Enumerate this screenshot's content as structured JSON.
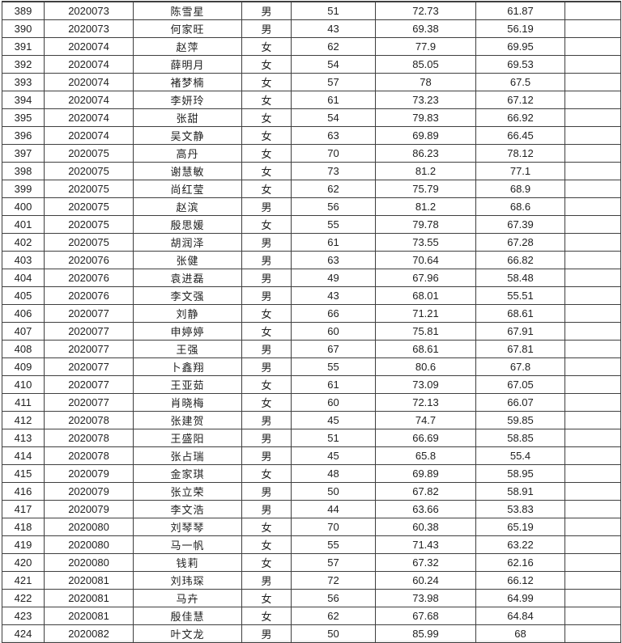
{
  "table": {
    "rows": [
      {
        "seq": "389",
        "id": "2020073",
        "name": "陈雪星",
        "gender": "男",
        "age": "51",
        "score1": "72.73",
        "score2": "61.87",
        "note": ""
      },
      {
        "seq": "390",
        "id": "2020073",
        "name": "何家旺",
        "gender": "男",
        "age": "43",
        "score1": "69.38",
        "score2": "56.19",
        "note": ""
      },
      {
        "seq": "391",
        "id": "2020074",
        "name": "赵萍",
        "gender": "女",
        "age": "62",
        "score1": "77.9",
        "score2": "69.95",
        "note": ""
      },
      {
        "seq": "392",
        "id": "2020074",
        "name": "薛明月",
        "gender": "女",
        "age": "54",
        "score1": "85.05",
        "score2": "69.53",
        "note": ""
      },
      {
        "seq": "393",
        "id": "2020074",
        "name": "褚梦楠",
        "gender": "女",
        "age": "57",
        "score1": "78",
        "score2": "67.5",
        "note": ""
      },
      {
        "seq": "394",
        "id": "2020074",
        "name": "李妍玲",
        "gender": "女",
        "age": "61",
        "score1": "73.23",
        "score2": "67.12",
        "note": ""
      },
      {
        "seq": "395",
        "id": "2020074",
        "name": "张甜",
        "gender": "女",
        "age": "54",
        "score1": "79.83",
        "score2": "66.92",
        "note": ""
      },
      {
        "seq": "396",
        "id": "2020074",
        "name": "吴文静",
        "gender": "女",
        "age": "63",
        "score1": "69.89",
        "score2": "66.45",
        "note": ""
      },
      {
        "seq": "397",
        "id": "2020075",
        "name": "高丹",
        "gender": "女",
        "age": "70",
        "score1": "86.23",
        "score2": "78.12",
        "note": ""
      },
      {
        "seq": "398",
        "id": "2020075",
        "name": "谢慧敏",
        "gender": "女",
        "age": "73",
        "score1": "81.2",
        "score2": "77.1",
        "note": ""
      },
      {
        "seq": "399",
        "id": "2020075",
        "name": "尚红莹",
        "gender": "女",
        "age": "62",
        "score1": "75.79",
        "score2": "68.9",
        "note": ""
      },
      {
        "seq": "400",
        "id": "2020075",
        "name": "赵滨",
        "gender": "男",
        "age": "56",
        "score1": "81.2",
        "score2": "68.6",
        "note": ""
      },
      {
        "seq": "401",
        "id": "2020075",
        "name": "殷思媛",
        "gender": "女",
        "age": "55",
        "score1": "79.78",
        "score2": "67.39",
        "note": ""
      },
      {
        "seq": "402",
        "id": "2020075",
        "name": "胡润泽",
        "gender": "男",
        "age": "61",
        "score1": "73.55",
        "score2": "67.28",
        "note": ""
      },
      {
        "seq": "403",
        "id": "2020076",
        "name": "张健",
        "gender": "男",
        "age": "63",
        "score1": "70.64",
        "score2": "66.82",
        "note": ""
      },
      {
        "seq": "404",
        "id": "2020076",
        "name": "袁进磊",
        "gender": "男",
        "age": "49",
        "score1": "67.96",
        "score2": "58.48",
        "note": ""
      },
      {
        "seq": "405",
        "id": "2020076",
        "name": "李文强",
        "gender": "男",
        "age": "43",
        "score1": "68.01",
        "score2": "55.51",
        "note": ""
      },
      {
        "seq": "406",
        "id": "2020077",
        "name": "刘静",
        "gender": "女",
        "age": "66",
        "score1": "71.21",
        "score2": "68.61",
        "note": ""
      },
      {
        "seq": "407",
        "id": "2020077",
        "name": "申婷婷",
        "gender": "女",
        "age": "60",
        "score1": "75.81",
        "score2": "67.91",
        "note": ""
      },
      {
        "seq": "408",
        "id": "2020077",
        "name": "王强",
        "gender": "男",
        "age": "67",
        "score1": "68.61",
        "score2": "67.81",
        "note": ""
      },
      {
        "seq": "409",
        "id": "2020077",
        "name": "卜鑫翔",
        "gender": "男",
        "age": "55",
        "score1": "80.6",
        "score2": "67.8",
        "note": ""
      },
      {
        "seq": "410",
        "id": "2020077",
        "name": "王亚茹",
        "gender": "女",
        "age": "61",
        "score1": "73.09",
        "score2": "67.05",
        "note": ""
      },
      {
        "seq": "411",
        "id": "2020077",
        "name": "肖晓梅",
        "gender": "女",
        "age": "60",
        "score1": "72.13",
        "score2": "66.07",
        "note": ""
      },
      {
        "seq": "412",
        "id": "2020078",
        "name": "张建贺",
        "gender": "男",
        "age": "45",
        "score1": "74.7",
        "score2": "59.85",
        "note": ""
      },
      {
        "seq": "413",
        "id": "2020078",
        "name": "王盛阳",
        "gender": "男",
        "age": "51",
        "score1": "66.69",
        "score2": "58.85",
        "note": ""
      },
      {
        "seq": "414",
        "id": "2020078",
        "name": "张占瑞",
        "gender": "男",
        "age": "45",
        "score1": "65.8",
        "score2": "55.4",
        "note": ""
      },
      {
        "seq": "415",
        "id": "2020079",
        "name": "金家琪",
        "gender": "女",
        "age": "48",
        "score1": "69.89",
        "score2": "58.95",
        "note": ""
      },
      {
        "seq": "416",
        "id": "2020079",
        "name": "张立荣",
        "gender": "男",
        "age": "50",
        "score1": "67.82",
        "score2": "58.91",
        "note": ""
      },
      {
        "seq": "417",
        "id": "2020079",
        "name": "李文浩",
        "gender": "男",
        "age": "44",
        "score1": "63.66",
        "score2": "53.83",
        "note": ""
      },
      {
        "seq": "418",
        "id": "2020080",
        "name": "刘琴琴",
        "gender": "女",
        "age": "70",
        "score1": "60.38",
        "score2": "65.19",
        "note": ""
      },
      {
        "seq": "419",
        "id": "2020080",
        "name": "马一帆",
        "gender": "女",
        "age": "55",
        "score1": "71.43",
        "score2": "63.22",
        "note": ""
      },
      {
        "seq": "420",
        "id": "2020080",
        "name": "钱莉",
        "gender": "女",
        "age": "57",
        "score1": "67.32",
        "score2": "62.16",
        "note": ""
      },
      {
        "seq": "421",
        "id": "2020081",
        "name": "刘玮琛",
        "gender": "男",
        "age": "72",
        "score1": "60.24",
        "score2": "66.12",
        "note": ""
      },
      {
        "seq": "422",
        "id": "2020081",
        "name": "马卉",
        "gender": "女",
        "age": "56",
        "score1": "73.98",
        "score2": "64.99",
        "note": ""
      },
      {
        "seq": "423",
        "id": "2020081",
        "name": "殷佳慧",
        "gender": "女",
        "age": "62",
        "score1": "67.68",
        "score2": "64.84",
        "note": ""
      },
      {
        "seq": "424",
        "id": "2020082",
        "name": "叶文龙",
        "gender": "男",
        "age": "50",
        "score1": "85.99",
        "score2": "68",
        "note": ""
      }
    ]
  }
}
